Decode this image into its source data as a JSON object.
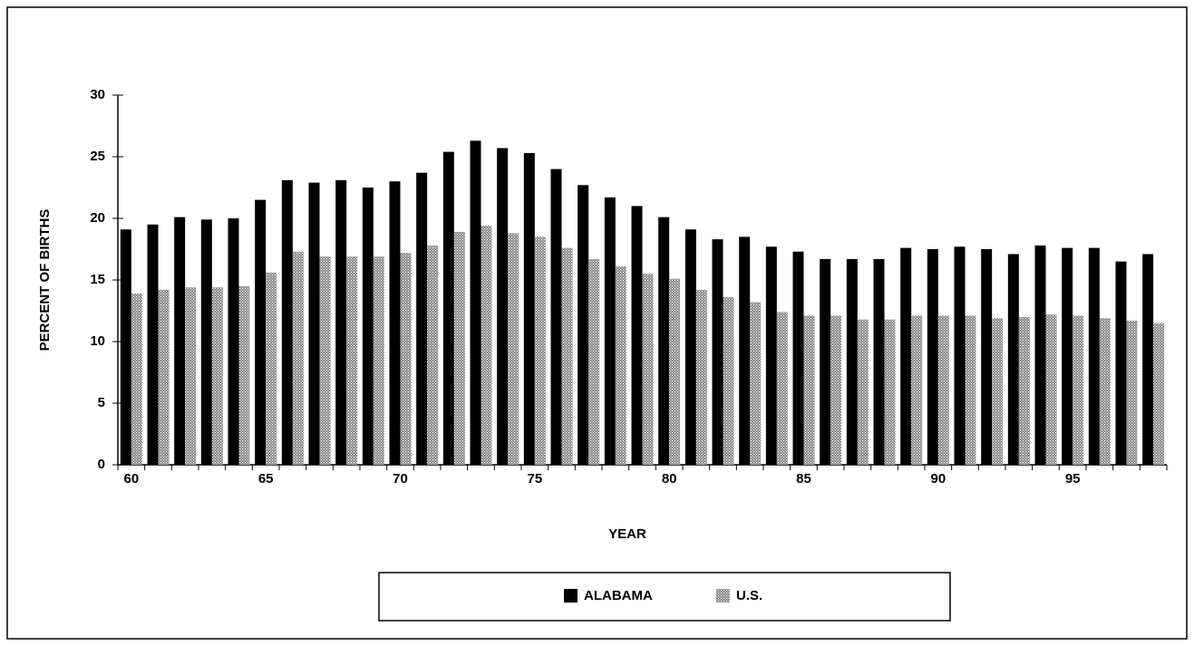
{
  "chart_data": {
    "type": "bar",
    "y_label": "PERCENT OF BIRTHS",
    "x_label": "YEAR",
    "categories": [
      "60",
      null,
      null,
      null,
      null,
      "65",
      null,
      null,
      null,
      null,
      "70",
      null,
      null,
      null,
      null,
      "75",
      null,
      null,
      null,
      null,
      "80",
      null,
      null,
      null,
      null,
      "85",
      null,
      null,
      null,
      null,
      "90",
      null,
      null,
      null,
      null,
      "95",
      null,
      null,
      null
    ],
    "series": [
      {
        "name": "ALABAMA",
        "color": "#000000",
        "values": [
          19.1,
          19.5,
          20.1,
          19.9,
          20.0,
          21.5,
          23.1,
          22.9,
          23.1,
          22.5,
          23.0,
          23.7,
          25.4,
          26.3,
          25.7,
          25.3,
          24.0,
          22.7,
          21.7,
          21.0,
          20.1,
          19.1,
          18.3,
          18.5,
          17.7,
          17.3,
          16.7,
          16.7,
          16.7,
          17.6,
          17.5,
          17.7,
          17.5,
          17.1,
          17.8,
          17.6,
          17.6,
          16.5,
          17.1
        ]
      },
      {
        "name": "U.S.",
        "color": "#8a8a8a",
        "hatch": true,
        "values": [
          13.9,
          14.2,
          14.4,
          14.4,
          14.5,
          15.6,
          17.3,
          16.9,
          16.9,
          16.9,
          17.2,
          17.8,
          18.9,
          19.4,
          18.8,
          18.5,
          17.6,
          16.7,
          16.1,
          15.5,
          15.1,
          14.2,
          13.6,
          13.2,
          12.4,
          12.1,
          12.1,
          11.8,
          11.8,
          12.1,
          12.1,
          12.1,
          11.9,
          12.0,
          12.2,
          12.1,
          11.9,
          11.7,
          11.5
        ]
      }
    ],
    "ylim": [
      0,
      30
    ],
    "yticks": [
      0,
      5,
      10,
      15,
      20,
      25,
      30
    ],
    "grid": false,
    "legend": "bottom"
  }
}
